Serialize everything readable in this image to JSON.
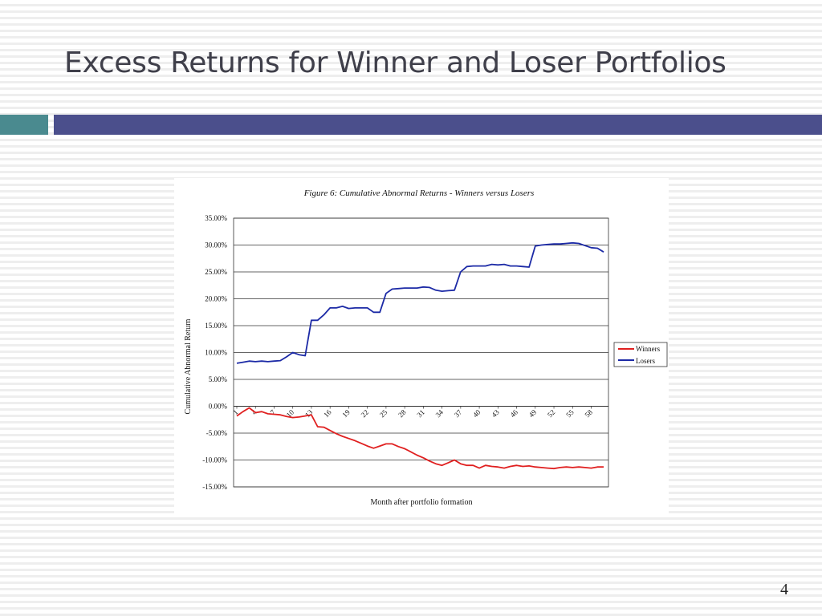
{
  "slide": {
    "title": "Excess Returns for Winner and Loser Portfolios",
    "page_number": "4"
  },
  "colors": {
    "teal_bar": "#4a8a8f",
    "navy_bar": "#4b4f8c",
    "winners_line": "#e02020",
    "losers_line": "#1c2aa6"
  },
  "chart_data": {
    "type": "line",
    "title": "Figure 6: Cumulative Abnormal Returns - Winners versus Losers",
    "xlabel": "Month after portfolio formation",
    "ylabel": "Cumulative Abnormal Return",
    "ylim": [
      -15,
      35
    ],
    "y_ticks": [
      35,
      30,
      25,
      20,
      15,
      10,
      5,
      0,
      -5,
      -10,
      -15
    ],
    "y_tick_labels": [
      "35.00%",
      "30.00%",
      "25.00%",
      "20.00%",
      "15.00%",
      "10.00%",
      "5.00%",
      "0.00%",
      "-5.00%",
      "-10.00%",
      "-15.00%"
    ],
    "x_range": [
      1,
      60
    ],
    "x_tick_labels": [
      "1",
      "4",
      "7",
      "10",
      "13",
      "16",
      "19",
      "22",
      "25",
      "28",
      "31",
      "34",
      "37",
      "40",
      "43",
      "46",
      "49",
      "52",
      "55",
      "58"
    ],
    "grid": true,
    "legend_position": "right",
    "series": [
      {
        "name": "Winners",
        "color": "#e02020",
        "values": [
          -1.8,
          -1.0,
          -0.3,
          -1.2,
          -1.0,
          -1.4,
          -1.5,
          -1.6,
          -1.9,
          -2.1,
          -2.0,
          -1.8,
          -1.6,
          -3.8,
          -3.9,
          -4.5,
          -5.1,
          -5.6,
          -6.0,
          -6.4,
          -6.9,
          -7.4,
          -7.8,
          -7.4,
          -7.0,
          -7.0,
          -7.5,
          -7.9,
          -8.5,
          -9.1,
          -9.6,
          -10.2,
          -10.7,
          -11.0,
          -10.5,
          -10.0,
          -10.7,
          -11.0,
          -11.0,
          -11.5,
          -11.0,
          -11.2,
          -11.3,
          -11.5,
          -11.2,
          -11.0,
          -11.2,
          -11.1,
          -11.3,
          -11.4,
          -11.5,
          -11.6,
          -11.4,
          -11.3,
          -11.4,
          -11.3,
          -11.4,
          -11.5,
          -11.3,
          -11.3
        ]
      },
      {
        "name": "Losers",
        "color": "#1c2aa6",
        "values": [
          8.0,
          8.2,
          8.4,
          8.3,
          8.4,
          8.3,
          8.4,
          8.5,
          9.2,
          10.0,
          9.6,
          9.4,
          16.0,
          16.0,
          17.0,
          18.3,
          18.3,
          18.6,
          18.2,
          18.3,
          18.3,
          18.3,
          17.5,
          17.5,
          21.0,
          21.8,
          21.9,
          22.0,
          22.0,
          22.0,
          22.2,
          22.1,
          21.6,
          21.4,
          21.5,
          21.6,
          25.0,
          26.0,
          26.1,
          26.1,
          26.1,
          26.4,
          26.3,
          26.4,
          26.1,
          26.1,
          26.0,
          25.9,
          29.8,
          30.0,
          30.1,
          30.2,
          30.2,
          30.3,
          30.4,
          30.3,
          29.9,
          29.5,
          29.4,
          28.7
        ]
      }
    ]
  }
}
